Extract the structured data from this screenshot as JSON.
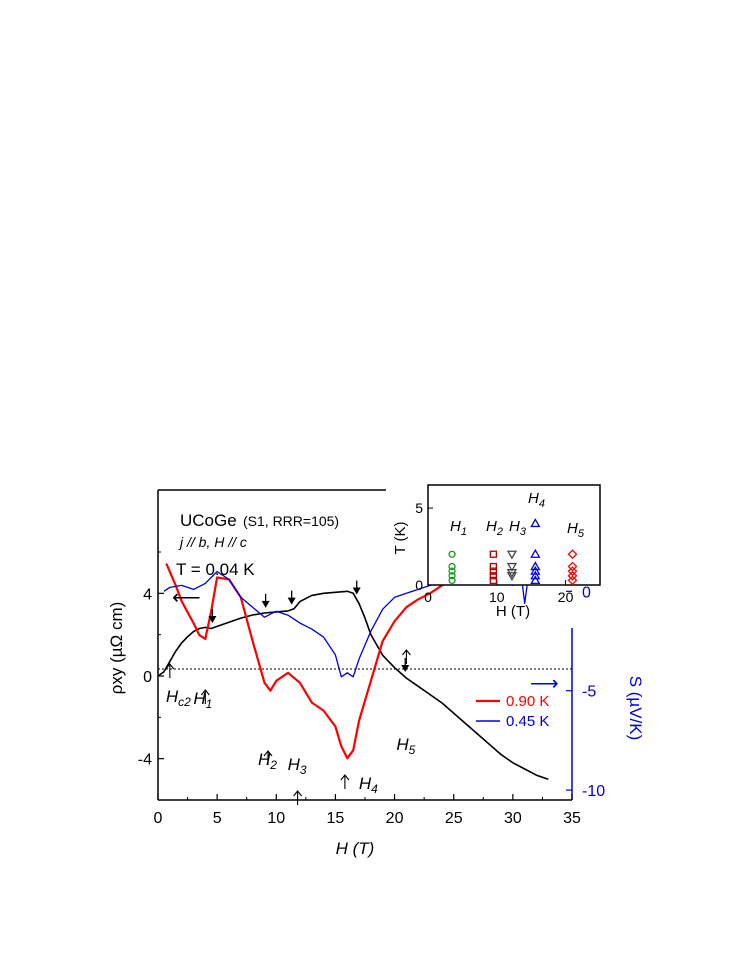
{
  "chart_data": [
    {
      "type": "line",
      "title": "UCoGe",
      "subtitle": "(S1, RRR=105)",
      "condition": "j // b, H // c",
      "temperature_label": "T = 0.04 K",
      "xlabel": "H (T)",
      "ylabel_left": "ρxy (µΩ cm)",
      "ylabel_right": "S (µV/K)",
      "xlim": [
        0,
        35
      ],
      "ylim_left": [
        -6,
        9
      ],
      "ylim_right": [
        -10.5,
        5.1
      ],
      "x_ticks": [
        "0",
        "5",
        "10",
        "15",
        "20",
        "25",
        "30",
        "35"
      ],
      "y_ticks_left": [
        "4",
        "0",
        "-4"
      ],
      "y_ticks_right": [
        "0",
        "-5",
        "-10"
      ],
      "colors": {
        "hall": "#000000",
        "s_090": "#ff0000",
        "s_045": "#0000dd",
        "right_axis": "#0000dd"
      },
      "series": [
        {
          "name": "ρxy (0.04 K)",
          "axis": "left",
          "x": [
            0,
            0.5,
            1,
            1.5,
            2,
            2.5,
            3,
            3.5,
            4,
            4.5,
            5,
            6,
            7,
            8,
            9,
            10,
            11,
            11.5,
            12,
            13,
            14,
            15,
            16,
            16.5,
            17,
            17.5,
            18,
            19,
            20,
            21,
            22,
            23,
            24,
            25,
            26,
            27,
            28,
            29,
            30,
            31,
            32,
            33
          ],
          "y": [
            0,
            0.2,
            0.7,
            1.2,
            1.6,
            1.9,
            2.15,
            2.3,
            2.35,
            2.3,
            2.4,
            2.6,
            2.8,
            2.95,
            3.05,
            3.1,
            3.15,
            3.25,
            3.6,
            3.9,
            4.0,
            4.05,
            4.1,
            4.0,
            3.5,
            2.8,
            2.0,
            1.0,
            0.4,
            -0.1,
            -0.5,
            -0.9,
            -1.3,
            -1.8,
            -2.3,
            -2.8,
            -3.3,
            -3.8,
            -4.2,
            -4.5,
            -4.8,
            -5.0
          ]
        },
        {
          "name": "0.90 K",
          "axis": "right",
          "x": [
            0.7,
            1.5,
            2,
            3,
            3.5,
            4,
            4.5,
            5,
            6,
            7,
            8,
            9,
            9.5,
            10,
            11,
            12,
            13,
            14,
            15,
            15.5,
            16,
            16.5,
            17,
            18,
            19,
            20,
            21,
            22,
            23,
            24,
            25,
            26,
            27,
            28,
            29,
            30,
            31,
            32,
            33
          ],
          "y": [
            1.4,
            0.3,
            -0.5,
            -1.6,
            -2.2,
            -2.4,
            -1.0,
            0.7,
            0.6,
            -0.3,
            -2.5,
            -4.6,
            -5.0,
            -4.5,
            -4.1,
            -4.6,
            -5.6,
            -6.0,
            -6.8,
            -7.8,
            -8.4,
            -8.0,
            -6.5,
            -4.5,
            -2.5,
            -1.5,
            -0.8,
            -0.4,
            -0.1,
            0.3,
            0.6,
            1.0,
            1.2,
            1.3,
            1.4,
            1.3,
            1.4,
            1.5,
            2.2
          ]
        },
        {
          "name": "0.45 K",
          "axis": "right",
          "x": [
            0.5,
            1,
            2,
            3,
            4,
            5,
            6,
            7,
            8,
            9,
            10,
            11,
            12,
            13,
            14,
            15,
            15.5,
            16,
            16.5,
            17,
            18,
            19,
            20,
            21,
            22,
            23,
            24,
            25,
            26,
            27,
            28,
            29,
            29.5,
            30,
            30.5,
            31,
            31.5,
            32,
            32.5,
            33
          ],
          "y": [
            0,
            0.2,
            0.3,
            0.1,
            0.4,
            1.0,
            0.6,
            -0.3,
            -0.8,
            -1.3,
            -1.0,
            -1.2,
            -1.6,
            -1.9,
            -2.3,
            -3.2,
            -4.3,
            -4.1,
            -4.3,
            -3.4,
            -2.0,
            -0.9,
            -0.3,
            -0.1,
            0.1,
            0.3,
            0.5,
            0.7,
            0.9,
            1.0,
            1.1,
            1.2,
            0.9,
            0.3,
            1.8,
            -0.6,
            1.6,
            3.0,
            0.4,
            1.2
          ]
        }
      ],
      "legend": [
        {
          "label": "0.90 K",
          "color": "#ff0000"
        },
        {
          "label": "0.45 K",
          "color": "#0000dd"
        }
      ],
      "annotations": {
        "field_markers": [
          {
            "label": "Hc2",
            "main": "H",
            "sub": "c2",
            "x": 1.0
          },
          {
            "label": "H1",
            "main": "H",
            "sub": "1",
            "x": 4.0
          },
          {
            "label": "H2",
            "main": "H",
            "sub": "2",
            "x": 9.3
          },
          {
            "label": "H3",
            "main": "H",
            "sub": "3",
            "x": 11.8
          },
          {
            "label": "H4",
            "main": "H",
            "sub": "4",
            "x": 15.8
          },
          {
            "label": "H5",
            "main": "H",
            "sub": "5",
            "x": 21.0
          }
        ],
        "down_arrows_on_hall_x": [
          4.6,
          9.1,
          11.3,
          16.8,
          20.9
        ]
      }
    },
    {
      "type": "scatter",
      "title": "",
      "xlabel": "H (T)",
      "ylabel": "T (K)",
      "xlim": [
        0,
        25
      ],
      "ylim": [
        0,
        6.5
      ],
      "x_ticks": [
        "0",
        "10",
        "20"
      ],
      "y_ticks": [
        "0",
        "5"
      ],
      "series": [
        {
          "name": "H1",
          "main": "H",
          "sub": "1",
          "marker": "circle",
          "color": "#1a9a1a",
          "filled": false,
          "x": [
            3.5,
            3.5,
            3.5,
            3.5,
            3.5
          ],
          "y": [
            2.0,
            1.2,
            0.9,
            0.6,
            0.3
          ]
        },
        {
          "name": "H2",
          "main": "H",
          "sub": "2",
          "marker": "square",
          "color": "#b00000",
          "filled": false,
          "x": [
            9.5,
            9.5,
            9.5,
            9.5,
            9.5
          ],
          "y": [
            2.0,
            1.2,
            0.9,
            0.6,
            0.3
          ]
        },
        {
          "name": "H3",
          "main": "H",
          "sub": "3",
          "marker": "triangle-down",
          "color": "#444444",
          "filled": false,
          "x": [
            12.2,
            12.2,
            12.2,
            12.2
          ],
          "y": [
            2.0,
            1.2,
            0.8,
            0.6
          ]
        },
        {
          "name": "H4",
          "main": "H",
          "sub": "4",
          "marker": "triangle-up",
          "color": "#0000dd",
          "filled": false,
          "x": [
            15.6,
            15.6,
            15.6,
            15.6,
            15.6,
            15.6
          ],
          "y": [
            4.0,
            2.0,
            1.2,
            0.9,
            0.6,
            0.3
          ]
        },
        {
          "name": "H5",
          "main": "H",
          "sub": "5",
          "marker": "diamond",
          "color": "#ff0000",
          "filled": false,
          "x": [
            21.0,
            21.0,
            21.0,
            21.0,
            21.0
          ],
          "y": [
            2.0,
            1.2,
            0.9,
            0.6,
            0.3
          ]
        }
      ]
    }
  ]
}
